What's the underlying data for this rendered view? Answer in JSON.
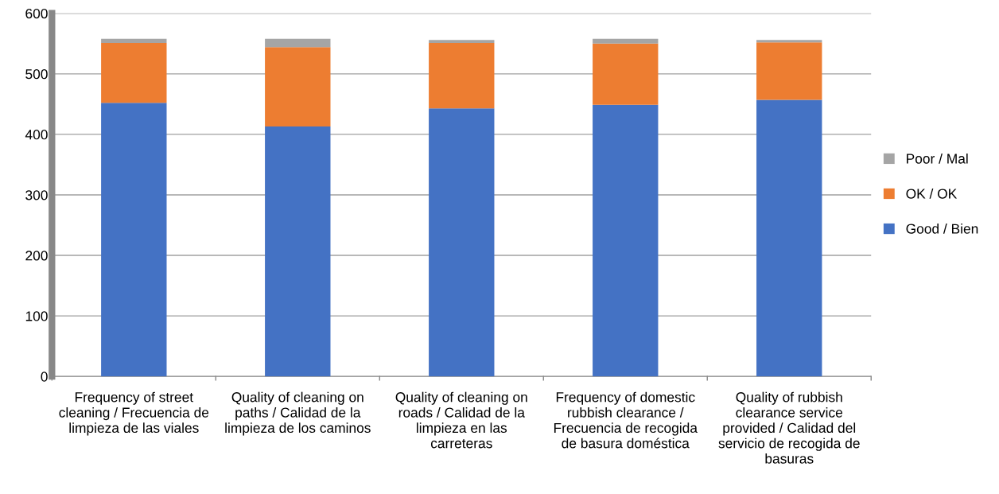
{
  "chart_data": {
    "type": "bar",
    "stacked": true,
    "categories": [
      "Frequency of street cleaning / Frecuencia de limpieza de las viales",
      "Quality of cleaning on paths / Calidad de la limpieza de los caminos",
      "Quality of cleaning on roads / Calidad de la limpieza en las carreteras",
      "Frequency of domestic rubbish clearance / Frecuencia de recogida de basura doméstica",
      "Quality of rubbish clearance service provided / Calidad del servicio de recogida de basuras"
    ],
    "series": [
      {
        "name": "Good / Bien",
        "color": "#4472c4",
        "values": [
          452,
          413,
          443,
          449,
          457
        ]
      },
      {
        "name": "OK / OK",
        "color": "#ed7d31",
        "values": [
          99,
          131,
          108,
          101,
          95
        ]
      },
      {
        "name": "Poor / Mal",
        "color": "#a5a5a5",
        "values": [
          7,
          14,
          5,
          8,
          4
        ]
      }
    ],
    "ylim": [
      0,
      600
    ],
    "yticks": [
      0,
      100,
      200,
      300,
      400,
      500,
      600
    ],
    "grid": "y",
    "legend": "right"
  }
}
